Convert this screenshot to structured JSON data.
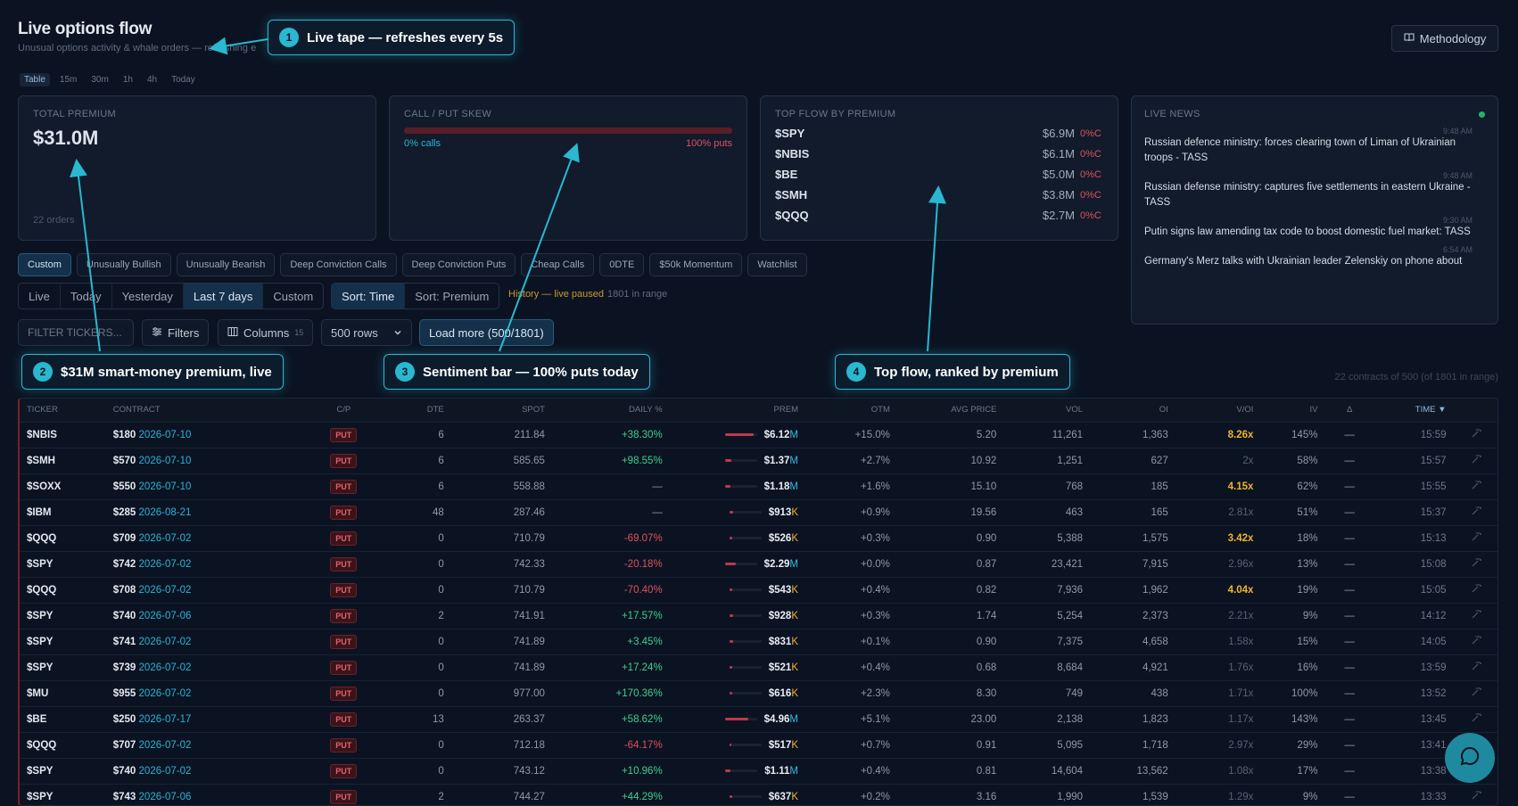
{
  "header": {
    "title": "Live options flow",
    "subtitle": "Unusual options activity & whale orders — refreshing e",
    "methodology_label": "Methodology"
  },
  "timeframes": [
    "Table",
    "15m",
    "30m",
    "1h",
    "4h",
    "Today"
  ],
  "cards": {
    "total_premium": {
      "label": "TOTAL PREMIUM",
      "value": "$31.0M",
      "orders": "22 orders"
    },
    "skew": {
      "label": "CALL / PUT SKEW",
      "calls": "0% calls",
      "puts": "100% puts",
      "calls_fraction": 0
    },
    "top_flow": {
      "label": "TOP FLOW BY PREMIUM",
      "items": [
        {
          "symbol": "$SPY",
          "premium": "$6.9M",
          "pct": "0%C"
        },
        {
          "symbol": "$NBIS",
          "premium": "$6.1M",
          "pct": "0%C"
        },
        {
          "symbol": "$BE",
          "premium": "$5.0M",
          "pct": "0%C"
        },
        {
          "symbol": "$SMH",
          "premium": "$3.8M",
          "pct": "0%C"
        },
        {
          "symbol": "$QQQ",
          "premium": "$2.7M",
          "pct": "0%C"
        }
      ]
    },
    "news": {
      "label": "LIVE NEWS",
      "items": [
        {
          "time": "9:48 AM",
          "text": "Russian defence ministry: forces clearing town of Liman of Ukrainian troops - TASS"
        },
        {
          "time": "9:48 AM",
          "text": "Russian defense ministry: captures five settlements in eastern Ukraine - TASS"
        },
        {
          "time": "9:30 AM",
          "text": "Putin signs law amending tax code to boost domestic fuel market: TASS"
        },
        {
          "time": "6:54 AM",
          "text": "Germany's Merz talks with Ukrainian leader Zelenskiy on phone about"
        }
      ]
    }
  },
  "presets": [
    "Custom",
    "Unusually Bullish",
    "Unusually Bearish",
    "Deep Conviction Calls",
    "Deep Conviction Puts",
    "Cheap Calls",
    "0DTE",
    "$50k Momentum",
    "Watchlist"
  ],
  "ranges": [
    "Live",
    "Today",
    "Yesterday",
    "Last 7 days",
    "Custom"
  ],
  "sorts": [
    "Sort: Time",
    "Sort: Premium"
  ],
  "history": {
    "status": "History — live paused",
    "count": "1801 in range"
  },
  "controls": {
    "filter_placeholder": "FILTER TICKERS...",
    "filters_label": "Filters",
    "columns_label": "Columns",
    "columns_count": "15",
    "rows_label": "500 rows",
    "load_more_label": "Load more (500/1801)"
  },
  "range_info": "22 contracts of 500 (of 1801 in range)",
  "table": {
    "headers": {
      "ticker": "TICKER",
      "contract": "CONTRACT",
      "cp": "C/P",
      "dte": "DTE",
      "spot": "SPOT",
      "daily": "DAILY %",
      "prem": "PREM",
      "otm": "OTM",
      "avg": "AVG PRICE",
      "vol": "VOL",
      "oi": "OI",
      "voi": "V/OI",
      "iv": "IV",
      "delta": "Δ",
      "time": "TIME ▼"
    },
    "rows": [
      {
        "ticker": "$NBIS",
        "strike": "$180",
        "expiry": "2026-07-10",
        "cp": "PUT",
        "dte": "6",
        "spot": "211.84",
        "daily": "+38.30%",
        "prem": "$6.12",
        "unit": "M",
        "share": 0.89,
        "otm": "+15.0%",
        "avg": "5.20",
        "vol": "11,261",
        "oi": "1,363",
        "voi": "8.26x",
        "voi_hi": true,
        "iv": "145%",
        "delta": "—",
        "time": "15:59"
      },
      {
        "ticker": "$SMH",
        "strike": "$570",
        "expiry": "2026-07-10",
        "cp": "PUT",
        "dte": "6",
        "spot": "585.65",
        "daily": "+98.55%",
        "prem": "$1.37",
        "unit": "M",
        "share": 0.2,
        "otm": "+2.7%",
        "avg": "10.92",
        "vol": "1,251",
        "oi": "627",
        "voi": "2x",
        "voi_hi": false,
        "iv": "58%",
        "delta": "—",
        "time": "15:57"
      },
      {
        "ticker": "$SOXX",
        "strike": "$550",
        "expiry": "2026-07-10",
        "cp": "PUT",
        "dte": "6",
        "spot": "558.88",
        "daily": "—",
        "prem": "$1.18",
        "unit": "M",
        "share": 0.17,
        "otm": "+1.6%",
        "avg": "15.10",
        "vol": "768",
        "oi": "185",
        "voi": "4.15x",
        "voi_hi": true,
        "iv": "62%",
        "delta": "—",
        "time": "15:55"
      },
      {
        "ticker": "$IBM",
        "strike": "$285",
        "expiry": "2026-08-21",
        "cp": "PUT",
        "dte": "48",
        "spot": "287.46",
        "daily": "—",
        "prem": "$913",
        "unit": "K",
        "share": 0.13,
        "otm": "+0.9%",
        "avg": "19.56",
        "vol": "463",
        "oi": "165",
        "voi": "2.81x",
        "voi_hi": false,
        "iv": "51%",
        "delta": "—",
        "time": "15:37"
      },
      {
        "ticker": "$QQQ",
        "strike": "$709",
        "expiry": "2026-07-02",
        "cp": "PUT",
        "dte": "0",
        "spot": "710.79",
        "daily": "-69.07%",
        "prem": "$526",
        "unit": "K",
        "share": 0.08,
        "otm": "+0.3%",
        "avg": "0.90",
        "vol": "5,388",
        "oi": "1,575",
        "voi": "3.42x",
        "voi_hi": true,
        "iv": "18%",
        "delta": "—",
        "time": "15:13"
      },
      {
        "ticker": "$SPY",
        "strike": "$742",
        "expiry": "2026-07-02",
        "cp": "PUT",
        "dte": "0",
        "spot": "742.33",
        "daily": "-20.18%",
        "prem": "$2.29",
        "unit": "M",
        "share": 0.33,
        "otm": "+0.0%",
        "avg": "0.87",
        "vol": "23,421",
        "oi": "7,915",
        "voi": "2.96x",
        "voi_hi": false,
        "iv": "13%",
        "delta": "—",
        "time": "15:08"
      },
      {
        "ticker": "$QQQ",
        "strike": "$708",
        "expiry": "2026-07-02",
        "cp": "PUT",
        "dte": "0",
        "spot": "710.79",
        "daily": "-70.40%",
        "prem": "$543",
        "unit": "K",
        "share": 0.08,
        "otm": "+0.4%",
        "avg": "0.82",
        "vol": "7,936",
        "oi": "1,962",
        "voi": "4.04x",
        "voi_hi": true,
        "iv": "19%",
        "delta": "—",
        "time": "15:05"
      },
      {
        "ticker": "$SPY",
        "strike": "$740",
        "expiry": "2026-07-06",
        "cp": "PUT",
        "dte": "2",
        "spot": "741.91",
        "daily": "+17.57%",
        "prem": "$928",
        "unit": "K",
        "share": 0.13,
        "otm": "+0.3%",
        "avg": "1.74",
        "vol": "5,254",
        "oi": "2,373",
        "voi": "2.21x",
        "voi_hi": false,
        "iv": "9%",
        "delta": "—",
        "time": "14:12"
      },
      {
        "ticker": "$SPY",
        "strike": "$741",
        "expiry": "2026-07-02",
        "cp": "PUT",
        "dte": "0",
        "spot": "741.89",
        "daily": "+3.45%",
        "prem": "$831",
        "unit": "K",
        "share": 0.12,
        "otm": "+0.1%",
        "avg": "0.90",
        "vol": "7,375",
        "oi": "4,658",
        "voi": "1.58x",
        "voi_hi": false,
        "iv": "15%",
        "delta": "—",
        "time": "14:05"
      },
      {
        "ticker": "$SPY",
        "strike": "$739",
        "expiry": "2026-07-02",
        "cp": "PUT",
        "dte": "0",
        "spot": "741.89",
        "daily": "+17.24%",
        "prem": "$521",
        "unit": "K",
        "share": 0.08,
        "otm": "+0.4%",
        "avg": "0.68",
        "vol": "8,684",
        "oi": "4,921",
        "voi": "1.76x",
        "voi_hi": false,
        "iv": "16%",
        "delta": "—",
        "time": "13:59"
      },
      {
        "ticker": "$MU",
        "strike": "$955",
        "expiry": "2026-07-02",
        "cp": "PUT",
        "dte": "0",
        "spot": "977.00",
        "daily": "+170.36%",
        "prem": "$616",
        "unit": "K",
        "share": 0.09,
        "otm": "+2.3%",
        "avg": "8.30",
        "vol": "749",
        "oi": "438",
        "voi": "1.71x",
        "voi_hi": false,
        "iv": "100%",
        "delta": "—",
        "time": "13:52"
      },
      {
        "ticker": "$BE",
        "strike": "$250",
        "expiry": "2026-07-17",
        "cp": "PUT",
        "dte": "13",
        "spot": "263.37",
        "daily": "+58.62%",
        "prem": "$4.96",
        "unit": "M",
        "share": 0.72,
        "otm": "+5.1%",
        "avg": "23.00",
        "vol": "2,138",
        "oi": "1,823",
        "voi": "1.17x",
        "voi_hi": false,
        "iv": "143%",
        "delta": "—",
        "time": "13:45"
      },
      {
        "ticker": "$QQQ",
        "strike": "$707",
        "expiry": "2026-07-02",
        "cp": "PUT",
        "dte": "0",
        "spot": "712.18",
        "daily": "-64.17%",
        "prem": "$517",
        "unit": "K",
        "share": 0.07,
        "otm": "+0.7%",
        "avg": "0.91",
        "vol": "5,095",
        "oi": "1,718",
        "voi": "2.97x",
        "voi_hi": false,
        "iv": "29%",
        "delta": "—",
        "time": "13:41"
      },
      {
        "ticker": "$SPY",
        "strike": "$740",
        "expiry": "2026-07-02",
        "cp": "PUT",
        "dte": "0",
        "spot": "743.12",
        "daily": "+10.96%",
        "prem": "$1.11",
        "unit": "M",
        "share": 0.16,
        "otm": "+0.4%",
        "avg": "0.81",
        "vol": "14,604",
        "oi": "13,562",
        "voi": "1.08x",
        "voi_hi": false,
        "iv": "17%",
        "delta": "—",
        "time": "13:38"
      },
      {
        "ticker": "$SPY",
        "strike": "$743",
        "expiry": "2026-07-06",
        "cp": "PUT",
        "dte": "2",
        "spot": "744.27",
        "daily": "+44.29%",
        "prem": "$637",
        "unit": "K",
        "share": 0.09,
        "otm": "+0.2%",
        "avg": "3.16",
        "vol": "1,990",
        "oi": "1,539",
        "voi": "1.29x",
        "voi_hi": false,
        "iv": "9%",
        "delta": "—",
        "time": "13:33"
      }
    ]
  },
  "annotations": [
    {
      "num": "1",
      "text": "Live tape — refreshes every 5s"
    },
    {
      "num": "2",
      "text": "$31M smart-money premium, live"
    },
    {
      "num": "3",
      "text": "Sentiment bar — 100% puts today"
    },
    {
      "num": "4",
      "text": "Top flow, ranked by premium"
    }
  ]
}
